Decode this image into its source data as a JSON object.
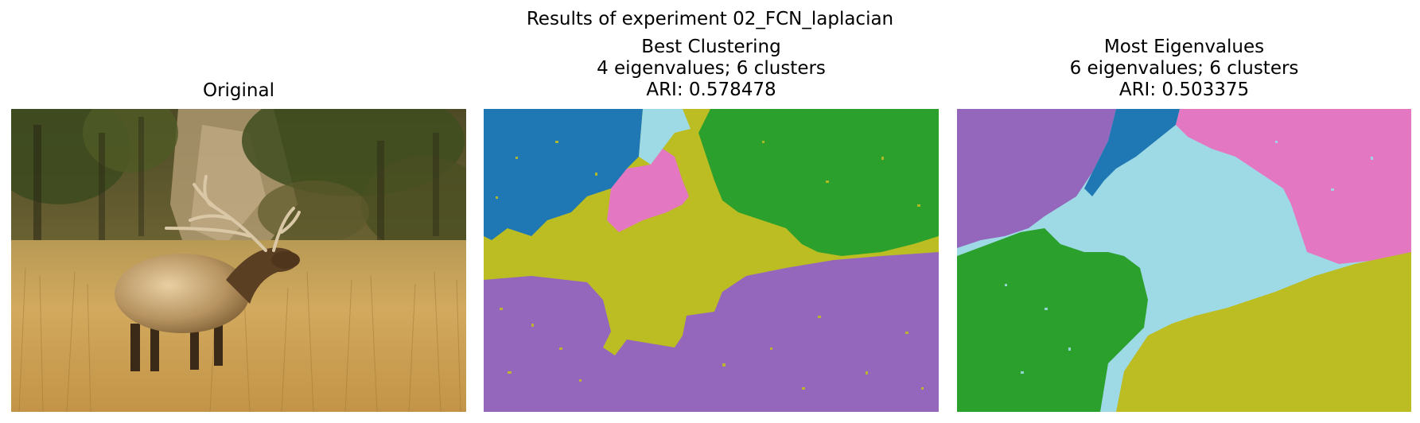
{
  "figure": {
    "suptitle": "Results of experiment 02_FCN_laplacian"
  },
  "panels": [
    {
      "title_lines": [
        "Original"
      ],
      "content": "photo"
    },
    {
      "title_lines": [
        "Best Clustering",
        "4 eigenvalues; 6 clusters",
        "ARI: 0.578478"
      ],
      "content": "segmentation"
    },
    {
      "title_lines": [
        "Most Eigenvalues",
        "6 eigenvalues; 6 clusters",
        "ARI: 0.503375"
      ],
      "content": "segmentation"
    }
  ],
  "palette": {
    "blue": "#1f77b4",
    "cyan": "#9edae5",
    "pink": "#e377c2",
    "green": "#2ca02c",
    "olive": "#bcbd22",
    "purple": "#9467bd"
  }
}
